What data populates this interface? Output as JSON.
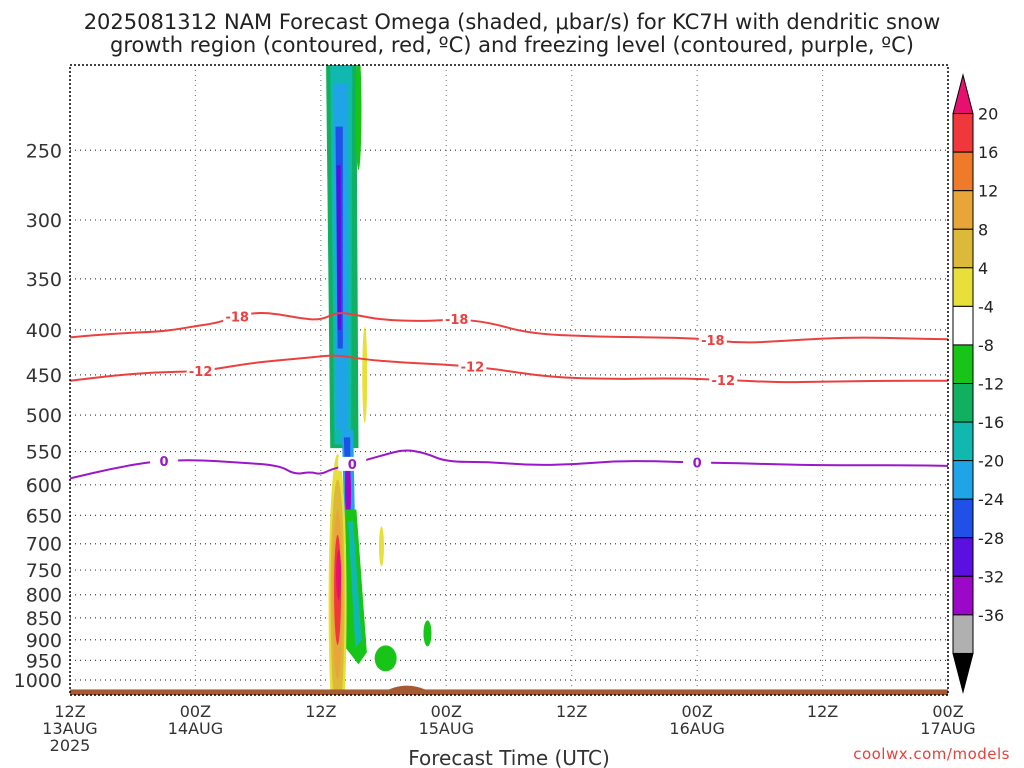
{
  "title_line1": "2025081312 NAM Forecast Omega (shaded, μbar/s) for KC7H with dendritic snow",
  "title_line2": "growth region (contoured, red, ºC) and freezing level (contoured, purple, ºC)",
  "credit": "coolwx.com/models",
  "chart_data": {
    "type": "contour",
    "title": "2025081312 NAM Forecast Omega (shaded, μbar/s) for KC7H with dendritic snow growth region (contoured, red, ºC) and freezing level (contoured, purple, ºC)",
    "xlabel": "Forecast Time (UTC)",
    "ylabel": "",
    "x_range_hours": [
      0,
      84
    ],
    "x_ticks": [
      {
        "hour": 0,
        "lines": [
          "12Z",
          "13AUG",
          "2025"
        ]
      },
      {
        "hour": 12,
        "lines": [
          "00Z",
          "14AUG"
        ]
      },
      {
        "hour": 24,
        "lines": [
          "12Z"
        ]
      },
      {
        "hour": 36,
        "lines": [
          "00Z",
          "15AUG"
        ]
      },
      {
        "hour": 48,
        "lines": [
          "12Z"
        ]
      },
      {
        "hour": 60,
        "lines": [
          "00Z",
          "16AUG"
        ]
      },
      {
        "hour": 72,
        "lines": [
          "12Z"
        ]
      },
      {
        "hour": 84,
        "lines": [
          "00Z",
          "17AUG"
        ]
      }
    ],
    "y_scale": "log-pressure",
    "y_range_hPa": [
      1040,
      200
    ],
    "y_ticks": [
      250,
      300,
      350,
      400,
      450,
      500,
      550,
      600,
      650,
      700,
      750,
      800,
      850,
      900,
      950,
      1000
    ],
    "grid": true,
    "colorbar": {
      "position": "right",
      "labels": [
        "20",
        "16",
        "12",
        "8",
        "4",
        "-4",
        "-8",
        "-12",
        "-16",
        "-20",
        "-24",
        "-28",
        "-32",
        "-36"
      ],
      "colors": [
        "#e8106e",
        "#f0383c",
        "#ee7a2a",
        "#e8a63a",
        "#ddb93a",
        "#e8e03a",
        "#ffffff",
        "#18c418",
        "#10b060",
        "#10b8b0",
        "#20a4e8",
        "#2050e8",
        "#5a10e0",
        "#9c08c8",
        "#b0b0b0",
        "#000000"
      ]
    },
    "series": [
      {
        "name": "-18",
        "color": "#ec4040",
        "label_hours": [
          16,
          37,
          61.5
        ],
        "points": [
          [
            0,
            408
          ],
          [
            4,
            404
          ],
          [
            8,
            402
          ],
          [
            10,
            400
          ],
          [
            12,
            396
          ],
          [
            14,
            393
          ],
          [
            16,
            386
          ],
          [
            18,
            382
          ],
          [
            20,
            384
          ],
          [
            22,
            388
          ],
          [
            24,
            390
          ],
          [
            25.5,
            382
          ],
          [
            27,
            384
          ],
          [
            30,
            390
          ],
          [
            34,
            391
          ],
          [
            37,
            389
          ],
          [
            40,
            392
          ],
          [
            44,
            404
          ],
          [
            50,
            407
          ],
          [
            56,
            408
          ],
          [
            60,
            409
          ],
          [
            64,
            414
          ],
          [
            68,
            412
          ],
          [
            72,
            409
          ],
          [
            76,
            408
          ],
          [
            80,
            409
          ],
          [
            84,
            410
          ]
        ]
      },
      {
        "name": "-12",
        "color": "#ec4040",
        "label_hours": [
          12.5,
          38.5,
          62.5
        ],
        "points": [
          [
            0,
            457
          ],
          [
            4,
            451
          ],
          [
            8,
            447
          ],
          [
            12,
            446
          ],
          [
            14,
            443
          ],
          [
            17,
            437
          ],
          [
            20,
            433
          ],
          [
            23,
            430
          ],
          [
            25.5,
            427
          ],
          [
            28,
            432
          ],
          [
            32,
            436
          ],
          [
            36,
            438
          ],
          [
            40,
            442
          ],
          [
            46,
            453
          ],
          [
            52,
            455
          ],
          [
            58,
            454
          ],
          [
            63,
            456
          ],
          [
            68,
            459
          ],
          [
            72,
            458
          ],
          [
            78,
            457
          ],
          [
            84,
            457
          ]
        ]
      },
      {
        "name": "0",
        "color": "#9a18c8",
        "label_hours": [
          9,
          27,
          60
        ],
        "points": [
          [
            0,
            590
          ],
          [
            4,
            575
          ],
          [
            8,
            564
          ],
          [
            12,
            562
          ],
          [
            16,
            566
          ],
          [
            20,
            570
          ],
          [
            21.5,
            584
          ],
          [
            23,
            580
          ],
          [
            24,
            584
          ],
          [
            25,
            576
          ],
          [
            27,
            568
          ],
          [
            30,
            555
          ],
          [
            32,
            547
          ],
          [
            34,
            552
          ],
          [
            36,
            565
          ],
          [
            40,
            565
          ],
          [
            44,
            570
          ],
          [
            48,
            569
          ],
          [
            52,
            564
          ],
          [
            56,
            564
          ],
          [
            60,
            566
          ],
          [
            64,
            567
          ],
          [
            68,
            569
          ],
          [
            72,
            570
          ],
          [
            76,
            570
          ],
          [
            80,
            570
          ],
          [
            84,
            571
          ]
        ]
      }
    ],
    "omega_features": [
      {
        "kind": "upward",
        "hour_range": [
          24.5,
          27.5
        ],
        "p_range": [
          200,
          980
        ]
      },
      {
        "kind": "downward",
        "hour_range": [
          24.5,
          26.5
        ],
        "p_range": [
          640,
          980
        ]
      },
      {
        "kind": "downward-weak",
        "hour": 28.2,
        "p_range": [
          385,
          525
        ]
      },
      {
        "kind": "downward-weak",
        "hour": 29.8,
        "p_range": [
          680,
          740
        ]
      },
      {
        "kind": "upward-weak",
        "hour": 30.2,
        "p_range": [
          925,
          965
        ]
      },
      {
        "kind": "upward-weak",
        "hour": 34.2,
        "p_range": [
          860,
          915
        ]
      }
    ],
    "terrain_color": "#a65a32"
  }
}
